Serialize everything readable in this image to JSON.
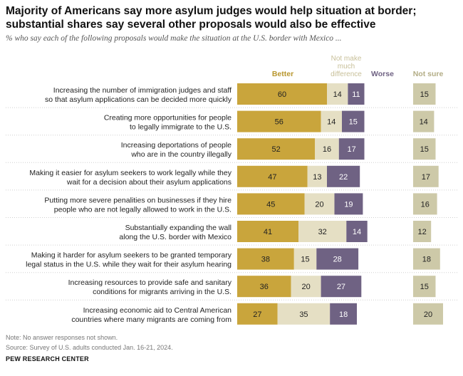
{
  "title": "Majority of Americans say more asylum judges would help situation at border; substantial shares say several other proposals would also be effective",
  "subtitle": "% who say each of the following proposals would make the situation at the U.S. border with Mexico ...",
  "note": "Note: No answer responses not shown.",
  "source": "Source: Survey of U.S. adults conducted Jan. 16-21, 2024.",
  "org": "PEW RESEARCH CENTER",
  "colors": {
    "better": "#c9a53c",
    "no_diff": "#e5dfc4",
    "worse": "#6f6283",
    "not_sure": "#cdc9a8",
    "better_label": "#b8962e",
    "no_diff_label": "#c8c09a",
    "not_sure_label": "#b3ad86"
  },
  "chart_data": {
    "type": "bar",
    "stacked": true,
    "orientation": "horizontal",
    "series_headers": {
      "better": "Better",
      "no_diff": [
        "Not make",
        "much",
        "difference"
      ],
      "worse": "Worse",
      "not_sure": "Not sure"
    },
    "categories": [
      [
        "Increasing the number of immigration judges and staff",
        "so that asylum applications can be decided more quickly"
      ],
      [
        "Creating more opportunities for people",
        "to legally immigrate to the U.S."
      ],
      [
        "Increasing deportations of people",
        "who are in the country illegally"
      ],
      [
        "Making it easier for asylum seekers to work legally while they",
        "wait for a decision about their asylum applications"
      ],
      [
        "Putting more severe penalities on businesses if they hire",
        "people who are not legally allowed to work in the U.S."
      ],
      [
        "Substantially expanding the wall",
        "along the U.S. border with Mexico"
      ],
      [
        "Making it harder for asylum seekers to be granted temporary",
        "legal status in the U.S. while they wait for their asylum hearing"
      ],
      [
        "Increasing resources to provide safe and sanitary",
        "conditions for migrants arriving in the U.S."
      ],
      [
        "Increasing economic aid to Central American",
        "countries where many migrants are coming from"
      ]
    ],
    "series": [
      {
        "key": "better",
        "name": "Better",
        "values": [
          60,
          56,
          52,
          47,
          45,
          41,
          38,
          36,
          27
        ]
      },
      {
        "key": "no_diff",
        "name": "Not make much difference",
        "values": [
          14,
          14,
          16,
          13,
          20,
          32,
          15,
          20,
          35
        ]
      },
      {
        "key": "worse",
        "name": "Worse",
        "values": [
          11,
          15,
          17,
          22,
          19,
          14,
          28,
          27,
          18
        ]
      },
      {
        "key": "not_sure",
        "name": "Not sure",
        "values": [
          15,
          14,
          15,
          17,
          16,
          12,
          18,
          15,
          20
        ]
      }
    ]
  }
}
